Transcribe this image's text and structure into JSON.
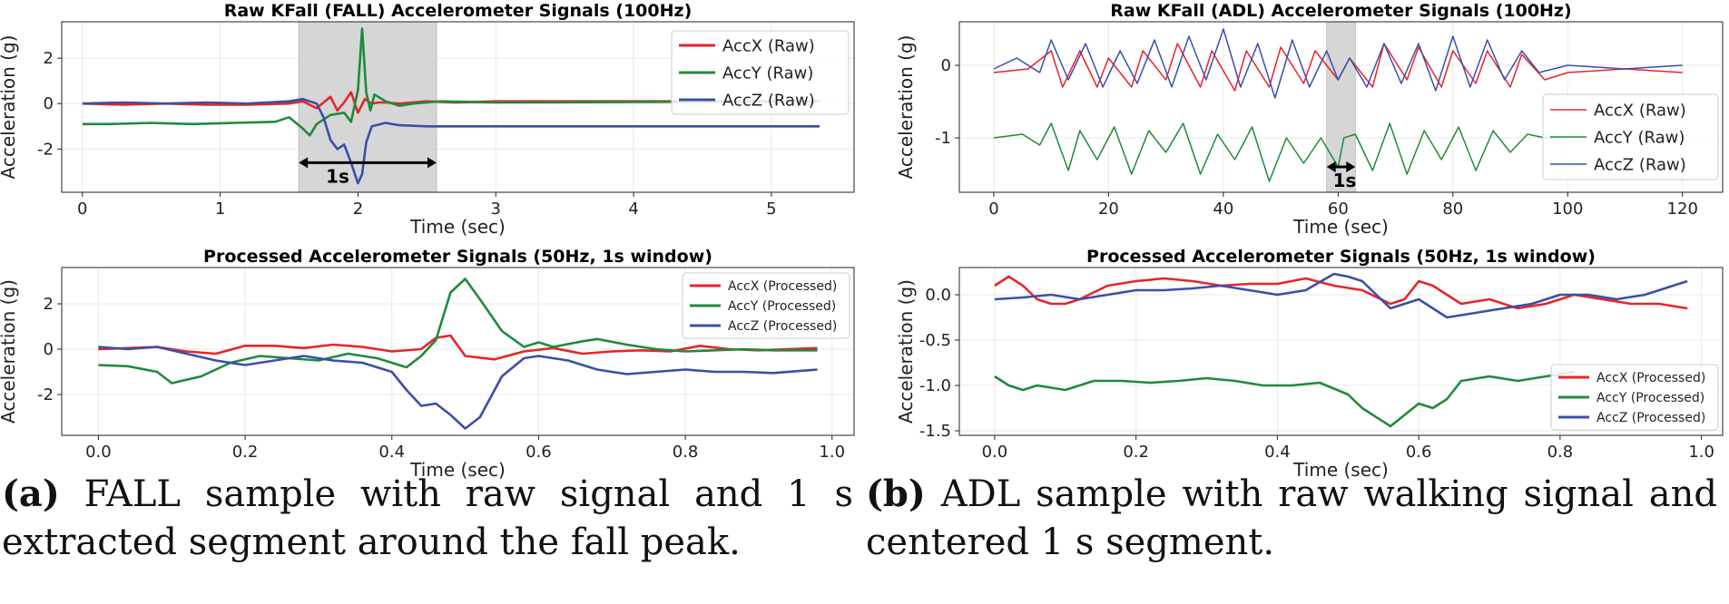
{
  "colors": {
    "accx": "#e8242a",
    "accy": "#1f8a3c",
    "accz": "#3a4fa8",
    "shade": "#d6d6d6",
    "grid": "#e8e8e8"
  },
  "caption_a": {
    "label": "(a)",
    "text": "FALL sample with raw signal and 1 s extracted segment around the fall peak."
  },
  "caption_b": {
    "label": "(b)",
    "text": "ADL sample with raw walking signal and centered 1 s segment."
  },
  "chart_data": [
    {
      "id": "fall_raw",
      "type": "line",
      "title": "Raw KFall (FALL) Accelerometer Signals (100Hz)",
      "xlabel": "Time (sec)",
      "ylabel": "Acceleration (g)",
      "xlim": [
        -0.15,
        5.6
      ],
      "ylim": [
        -3.9,
        3.6
      ],
      "xticks": [
        0,
        1,
        2,
        3,
        4,
        5
      ],
      "yticks": [
        -2,
        0,
        2
      ],
      "grid": true,
      "legend_position": "top-right",
      "shaded_region": [
        1.57,
        2.57
      ],
      "annotation": {
        "text": "1s",
        "x_range": [
          1.57,
          2.57
        ],
        "y": -2.6
      },
      "series": [
        {
          "name": "AccX (Raw)",
          "color_key": "accx",
          "x": [
            0,
            0.3,
            0.6,
            0.9,
            1.2,
            1.5,
            1.6,
            1.7,
            1.8,
            1.85,
            1.9,
            1.95,
            2.0,
            2.05,
            2.1,
            2.15,
            2.2,
            2.3,
            2.5,
            2.7,
            3.0,
            5.35
          ],
          "y": [
            0.0,
            -0.05,
            0.0,
            -0.05,
            -0.05,
            0.0,
            0.1,
            -0.2,
            0.3,
            -0.3,
            0.05,
            0.5,
            -0.4,
            0.2,
            0.0,
            0.05,
            0.05,
            0.0,
            0.1,
            0.05,
            0.1,
            0.1
          ]
        },
        {
          "name": "AccY (Raw)",
          "color_key": "accy",
          "x": [
            0,
            0.2,
            0.5,
            0.8,
            1.1,
            1.4,
            1.5,
            1.6,
            1.65,
            1.7,
            1.8,
            1.9,
            1.95,
            2.0,
            2.03,
            2.06,
            2.09,
            2.12,
            2.2,
            2.3,
            2.4,
            2.6,
            3.0,
            5.35
          ],
          "y": [
            -0.9,
            -0.9,
            -0.85,
            -0.9,
            -0.85,
            -0.8,
            -0.6,
            -1.1,
            -1.4,
            -0.9,
            -0.5,
            -0.4,
            -0.8,
            0.6,
            3.3,
            0.5,
            -0.3,
            0.4,
            0.1,
            -0.1,
            0.0,
            0.1,
            0.05,
            0.1
          ]
        },
        {
          "name": "AccZ (Raw)",
          "color_key": "accz",
          "x": [
            0,
            0.3,
            0.6,
            0.9,
            1.2,
            1.5,
            1.6,
            1.7,
            1.75,
            1.8,
            1.85,
            1.9,
            1.95,
            2.0,
            2.03,
            2.06,
            2.1,
            2.2,
            2.3,
            2.5,
            3.0,
            5.35
          ],
          "y": [
            0.0,
            0.05,
            0.0,
            0.05,
            0.0,
            0.1,
            0.2,
            0.0,
            -0.6,
            -1.6,
            -2.0,
            -1.8,
            -2.6,
            -3.5,
            -3.1,
            -1.7,
            -1.0,
            -0.85,
            -0.95,
            -1.0,
            -1.0,
            -1.0
          ]
        }
      ]
    },
    {
      "id": "adl_raw",
      "type": "line",
      "title": "Raw KFall (ADL) Accelerometer Signals (100Hz)",
      "xlabel": "Time (sec)",
      "ylabel": "Acceleration (g)",
      "xlim": [
        -6,
        127
      ],
      "ylim": [
        -1.75,
        0.6
      ],
      "xticks": [
        0,
        20,
        40,
        60,
        80,
        100,
        120
      ],
      "yticks": [
        -1,
        0
      ],
      "grid": true,
      "legend_position": "bottom-right",
      "shaded_region": [
        58,
        63
      ],
      "annotation": {
        "text": "1s",
        "x_range": [
          58,
          63
        ],
        "y": -1.4
      },
      "series": [
        {
          "name": "AccX (Raw)",
          "color_key": "accx",
          "x": [
            0,
            6,
            10,
            12,
            15,
            18,
            20,
            24,
            26,
            30,
            32,
            36,
            38,
            42,
            44,
            48,
            50,
            54,
            56,
            60,
            62,
            66,
            68,
            72,
            74,
            78,
            80,
            84,
            86,
            90,
            92,
            96,
            100,
            110,
            120
          ],
          "y": [
            -0.1,
            -0.05,
            0.2,
            -0.3,
            0.2,
            -0.3,
            0.1,
            -0.3,
            0.2,
            -0.2,
            0.3,
            -0.3,
            0.2,
            -0.35,
            0.2,
            -0.3,
            0.25,
            -0.25,
            0.2,
            -0.2,
            0.1,
            -0.3,
            0.3,
            -0.2,
            0.25,
            -0.3,
            0.2,
            -0.25,
            0.2,
            -0.3,
            0.15,
            -0.2,
            -0.1,
            -0.05,
            -0.1
          ]
        },
        {
          "name": "AccY (Raw)",
          "color_key": "accy",
          "x": [
            0,
            5,
            8,
            10,
            13,
            15,
            18,
            21,
            24,
            27,
            30,
            33,
            36,
            39,
            42,
            45,
            48,
            51,
            54,
            57,
            60,
            61,
            63,
            66,
            69,
            72,
            75,
            78,
            81,
            84,
            87,
            90,
            93,
            96,
            99
          ],
          "y": [
            -1.0,
            -0.95,
            -1.1,
            -0.8,
            -1.45,
            -0.9,
            -1.3,
            -0.85,
            -1.5,
            -0.9,
            -1.2,
            -0.8,
            -1.5,
            -0.95,
            -1.3,
            -0.85,
            -1.6,
            -1.0,
            -1.35,
            -1.0,
            -1.4,
            -1.0,
            -0.95,
            -1.45,
            -0.8,
            -1.5,
            -0.9,
            -1.3,
            -0.85,
            -1.45,
            -0.9,
            -1.2,
            -0.95,
            -1.0,
            -1.0
          ]
        },
        {
          "name": "AccZ (Raw)",
          "color_key": "accz",
          "x": [
            0,
            4,
            8,
            10,
            13,
            16,
            19,
            22,
            25,
            28,
            31,
            34,
            37,
            40,
            43,
            46,
            49,
            52,
            55,
            58,
            60,
            62,
            65,
            68,
            71,
            74,
            77,
            80,
            83,
            86,
            89,
            92,
            95,
            100,
            110,
            120
          ],
          "y": [
            -0.05,
            0.1,
            -0.1,
            0.35,
            -0.2,
            0.3,
            -0.3,
            0.2,
            -0.25,
            0.35,
            -0.3,
            0.4,
            -0.2,
            0.5,
            -0.3,
            0.3,
            -0.45,
            0.35,
            -0.3,
            0.2,
            -0.2,
            0.1,
            -0.3,
            0.3,
            -0.25,
            0.3,
            -0.35,
            0.4,
            -0.3,
            0.35,
            -0.2,
            0.2,
            -0.1,
            0.0,
            -0.05,
            0.0
          ]
        }
      ]
    },
    {
      "id": "fall_processed",
      "type": "line",
      "title": "Processed Accelerometer Signals (50Hz, 1s window)",
      "xlabel": "Time (sec)",
      "ylabel": "Acceleration (g)",
      "xlim": [
        -0.05,
        1.03
      ],
      "ylim": [
        -3.8,
        3.6
      ],
      "xticks": [
        0.0,
        0.2,
        0.4,
        0.6,
        0.8,
        1.0
      ],
      "yticks": [
        -2,
        0,
        2
      ],
      "grid": true,
      "legend_position": "top-right",
      "series": [
        {
          "name": "AccX (Processed)",
          "color_key": "accx",
          "x": [
            0,
            0.04,
            0.08,
            0.12,
            0.16,
            0.2,
            0.24,
            0.28,
            0.32,
            0.36,
            0.4,
            0.44,
            0.46,
            0.48,
            0.5,
            0.54,
            0.58,
            0.62,
            0.66,
            0.7,
            0.74,
            0.78,
            0.82,
            0.86,
            0.9,
            0.94,
            0.98
          ],
          "y": [
            0.0,
            0.05,
            0.1,
            -0.1,
            -0.2,
            0.15,
            0.15,
            0.05,
            0.2,
            0.1,
            -0.1,
            0.0,
            0.5,
            0.6,
            -0.3,
            -0.45,
            -0.1,
            0.05,
            -0.2,
            -0.1,
            -0.05,
            -0.1,
            0.15,
            0.0,
            -0.05,
            0.0,
            0.05
          ]
        },
        {
          "name": "AccY (Processed)",
          "color_key": "accy",
          "x": [
            0,
            0.04,
            0.08,
            0.1,
            0.14,
            0.18,
            0.22,
            0.26,
            0.3,
            0.34,
            0.38,
            0.42,
            0.44,
            0.46,
            0.48,
            0.5,
            0.52,
            0.55,
            0.58,
            0.6,
            0.62,
            0.66,
            0.68,
            0.72,
            0.76,
            0.8,
            0.84,
            0.88,
            0.92,
            0.98
          ],
          "y": [
            -0.7,
            -0.75,
            -1.0,
            -1.5,
            -1.2,
            -0.6,
            -0.3,
            -0.4,
            -0.5,
            -0.2,
            -0.4,
            -0.8,
            -0.3,
            0.4,
            2.5,
            3.1,
            2.2,
            0.8,
            0.1,
            0.3,
            0.1,
            0.35,
            0.45,
            0.2,
            0.0,
            -0.1,
            -0.05,
            0.0,
            -0.05,
            -0.05
          ]
        },
        {
          "name": "AccZ (Processed)",
          "color_key": "accz",
          "x": [
            0,
            0.04,
            0.08,
            0.12,
            0.16,
            0.2,
            0.24,
            0.28,
            0.32,
            0.36,
            0.4,
            0.42,
            0.44,
            0.46,
            0.48,
            0.5,
            0.52,
            0.55,
            0.58,
            0.6,
            0.64,
            0.68,
            0.72,
            0.76,
            0.8,
            0.84,
            0.88,
            0.92,
            0.98
          ],
          "y": [
            0.1,
            0.0,
            0.1,
            -0.2,
            -0.5,
            -0.7,
            -0.5,
            -0.3,
            -0.5,
            -0.6,
            -1.0,
            -1.8,
            -2.5,
            -2.4,
            -2.9,
            -3.5,
            -3.0,
            -1.2,
            -0.4,
            -0.3,
            -0.5,
            -0.9,
            -1.1,
            -1.0,
            -0.9,
            -1.0,
            -1.0,
            -1.05,
            -0.9
          ]
        }
      ]
    },
    {
      "id": "adl_processed",
      "type": "line",
      "title": "Processed Accelerometer Signals (50Hz, 1s window)",
      "xlabel": "Time (sec)",
      "ylabel": "Acceleration (g)",
      "xlim": [
        -0.05,
        1.03
      ],
      "ylim": [
        -1.55,
        0.3
      ],
      "xticks": [
        0.0,
        0.2,
        0.4,
        0.6,
        0.8,
        1.0
      ],
      "yticks": [
        -1.5,
        -1.0,
        -0.5,
        0.0
      ],
      "grid": true,
      "legend_position": "bottom-right",
      "series": [
        {
          "name": "AccX (Processed)",
          "color_key": "accx",
          "x": [
            0,
            0.02,
            0.04,
            0.06,
            0.08,
            0.1,
            0.12,
            0.16,
            0.2,
            0.24,
            0.28,
            0.32,
            0.36,
            0.4,
            0.44,
            0.48,
            0.52,
            0.56,
            0.58,
            0.6,
            0.62,
            0.66,
            0.7,
            0.74,
            0.78,
            0.82,
            0.86,
            0.9,
            0.94,
            0.98
          ],
          "y": [
            0.1,
            0.2,
            0.1,
            -0.05,
            -0.1,
            -0.1,
            -0.05,
            0.1,
            0.15,
            0.18,
            0.15,
            0.1,
            0.12,
            0.12,
            0.18,
            0.1,
            0.05,
            -0.1,
            -0.05,
            0.15,
            0.1,
            -0.1,
            -0.05,
            -0.15,
            -0.1,
            0.0,
            -0.05,
            -0.1,
            -0.1,
            -0.15
          ]
        },
        {
          "name": "AccY (Processed)",
          "color_key": "accy",
          "x": [
            0,
            0.02,
            0.04,
            0.06,
            0.1,
            0.14,
            0.18,
            0.22,
            0.26,
            0.3,
            0.34,
            0.38,
            0.42,
            0.46,
            0.5,
            0.52,
            0.56,
            0.6,
            0.62,
            0.64,
            0.66,
            0.7,
            0.74,
            0.78,
            0.82
          ],
          "y": [
            -0.9,
            -1.0,
            -1.05,
            -1.0,
            -1.05,
            -0.95,
            -0.95,
            -0.97,
            -0.95,
            -0.92,
            -0.95,
            -1.0,
            -1.0,
            -0.97,
            -1.1,
            -1.25,
            -1.45,
            -1.2,
            -1.25,
            -1.15,
            -0.95,
            -0.9,
            -0.95,
            -0.9,
            -0.85
          ]
        },
        {
          "name": "AccZ (Processed)",
          "color_key": "accz",
          "x": [
            0,
            0.04,
            0.08,
            0.12,
            0.16,
            0.2,
            0.24,
            0.28,
            0.32,
            0.36,
            0.4,
            0.44,
            0.48,
            0.5,
            0.52,
            0.56,
            0.6,
            0.64,
            0.68,
            0.72,
            0.76,
            0.8,
            0.84,
            0.88,
            0.92,
            0.96,
            0.98
          ],
          "y": [
            -0.05,
            -0.03,
            0.0,
            -0.05,
            0.0,
            0.05,
            0.05,
            0.07,
            0.1,
            0.05,
            0.0,
            0.05,
            0.23,
            0.2,
            0.15,
            -0.15,
            -0.05,
            -0.25,
            -0.2,
            -0.15,
            -0.1,
            0.0,
            0.0,
            -0.05,
            0.0,
            0.1,
            0.15
          ]
        }
      ]
    }
  ]
}
